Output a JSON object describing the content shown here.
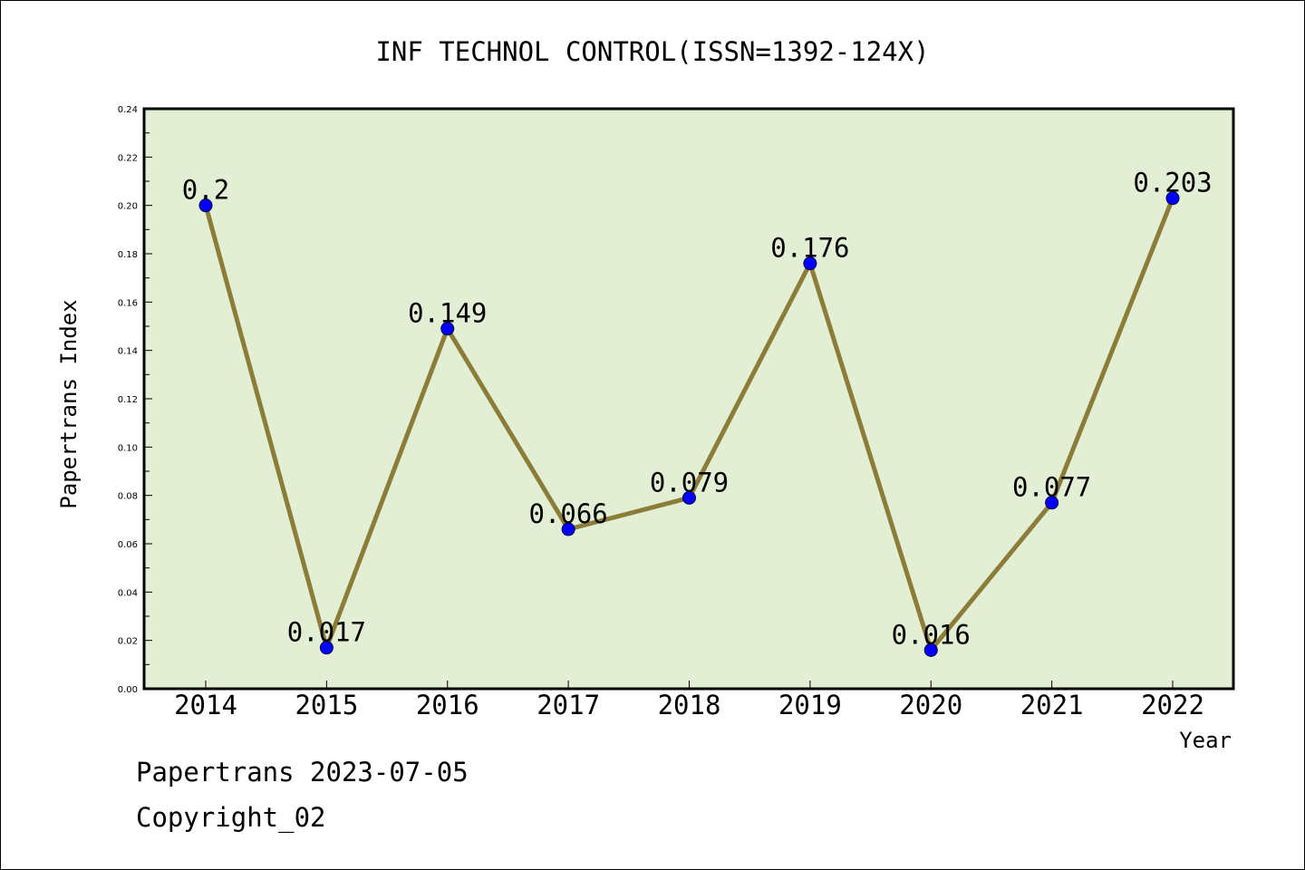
{
  "chart_data": {
    "type": "line",
    "title": "INF TECHNOL CONTROL(ISSN=1392-124X)",
    "xlabel": "Year",
    "ylabel": "Papertrans Index",
    "categories": [
      "2014",
      "2015",
      "2016",
      "2017",
      "2018",
      "2019",
      "2020",
      "2021",
      "2022"
    ],
    "values": [
      0.2,
      0.017,
      0.149,
      0.066,
      0.079,
      0.176,
      0.016,
      0.077,
      0.203
    ],
    "data_labels": [
      "0.2",
      "0.017",
      "0.149",
      "0.066",
      "0.079",
      "0.176",
      "0.016",
      "0.077",
      "0.203"
    ],
    "ylim": [
      0,
      0.24
    ],
    "yticks": [
      "0.00",
      "0.02",
      "0.04",
      "0.06",
      "0.08",
      "0.10",
      "0.12",
      "0.14",
      "0.16",
      "0.18",
      "0.20",
      "0.22",
      "0.24"
    ],
    "grid": false,
    "colors": {
      "plot_background": "#e2efd5",
      "line": "#8b7d37",
      "marker": "#0000ff"
    }
  },
  "footer": {
    "line1": "Papertrans 2023-07-05",
    "line2": "Copyright_02"
  }
}
